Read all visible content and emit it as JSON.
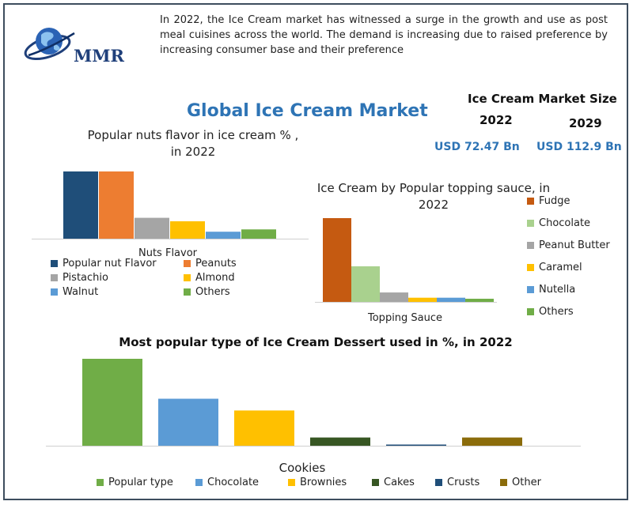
{
  "intro_text": "In 2022, the Ice Cream market has witnessed a surge in the growth and use as post meal cuisines across the world. The demand is increasing due to raised preference by increasing consumer base and their preference",
  "logo": {
    "text": "MMR",
    "icon": "globe-icon"
  },
  "title": "Global Ice Cream Market",
  "market_size": {
    "title": "Ice Cream Market Size",
    "year_2022": "2022",
    "year_2029": "2029",
    "value_2022": "USD 72.47 Bn",
    "value_2029": "USD 112.9 Bn"
  },
  "colors": {
    "title_blue": "#2e74b5",
    "frame": "#3d4d5e"
  },
  "chart_data": [
    {
      "type": "bar",
      "title": "Popular nuts flavor in ice cream % , in 2022",
      "xlabel": "Nuts Flavor",
      "categories": [
        "Nuts Flavor"
      ],
      "series": [
        {
          "name": "Popular nut Flavor",
          "values": [
            29
          ],
          "color": "#1f4e79"
        },
        {
          "name": "Peanuts",
          "values": [
            29
          ],
          "color": "#ed7d31"
        },
        {
          "name": "Pistachio",
          "values": [
            9
          ],
          "color": "#a5a5a5"
        },
        {
          "name": "Almond",
          "values": [
            7.5
          ],
          "color": "#ffc000"
        },
        {
          "name": "Walnut",
          "values": [
            3
          ],
          "color": "#5b9bd5"
        },
        {
          "name": "Others",
          "values": [
            4
          ],
          "color": "#70ad47"
        }
      ],
      "ylim": [
        0,
        30
      ],
      "grid": false,
      "legend": "bottom"
    },
    {
      "type": "bar",
      "title": "Ice Cream by Popular topping sauce, in 2022",
      "xlabel": "Topping Sauce",
      "categories": [
        "Topping Sauce"
      ],
      "series": [
        {
          "name": "Fudge",
          "values": [
            40
          ],
          "color": "#c55a11"
        },
        {
          "name": "Chocolate",
          "values": [
            17
          ],
          "color": "#a9d18e"
        },
        {
          "name": "Peanut Butter",
          "values": [
            4.5
          ],
          "color": "#a5a5a5"
        },
        {
          "name": "Caramel",
          "values": [
            2
          ],
          "color": "#ffc000"
        },
        {
          "name": "Nutella",
          "values": [
            2
          ],
          "color": "#5b9bd5"
        },
        {
          "name": "Others",
          "values": [
            1.5
          ],
          "color": "#70ad47"
        }
      ],
      "ylim": [
        0,
        40
      ],
      "grid": false,
      "legend": "right"
    },
    {
      "type": "bar",
      "title": "Most popular type of Ice Cream Dessert used in %, in 2022",
      "xlabel": "Cookies",
      "categories": [
        "Cookies"
      ],
      "series": [
        {
          "name": "Popular type",
          "values": [
            37
          ],
          "color": "#70ad47"
        },
        {
          "name": "Chocolate",
          "values": [
            20
          ],
          "color": "#5b9bd5"
        },
        {
          "name": "Brownies",
          "values": [
            15
          ],
          "color": "#ffc000"
        },
        {
          "name": "Cakes",
          "values": [
            3.5
          ],
          "color": "#375623"
        },
        {
          "name": "Crusts",
          "values": [
            0.5
          ],
          "color": "#1f4e79"
        },
        {
          "name": "Other",
          "values": [
            3.5
          ],
          "color": "#8b6c0b"
        }
      ],
      "ylim": [
        0,
        37
      ],
      "grid": false,
      "legend": "bottom"
    }
  ]
}
